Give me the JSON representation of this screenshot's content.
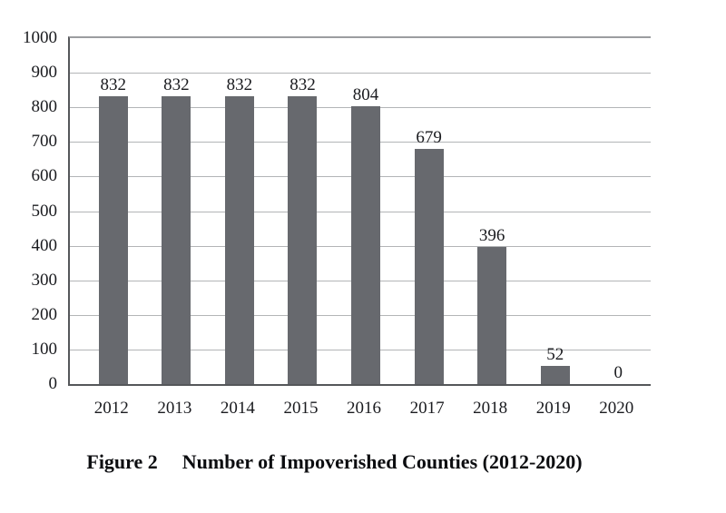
{
  "caption": {
    "label": "Figure 2",
    "title": "Number of Impoverished Counties (2012-2020)"
  },
  "chart_data": {
    "type": "bar",
    "title": "Figure 2  Number of Impoverished Counties (2012-2020)",
    "categories": [
      "2012",
      "2013",
      "2014",
      "2015",
      "2016",
      "2017",
      "2018",
      "2019",
      "2020"
    ],
    "values": [
      832,
      832,
      832,
      832,
      804,
      679,
      396,
      52,
      0
    ],
    "data_labels": [
      "832",
      "832",
      "832",
      "832",
      "804",
      "679",
      "396",
      "52",
      "0"
    ],
    "xlabel": "",
    "ylabel": "",
    "ylim": [
      0,
      1000
    ],
    "yticks": [
      0,
      100,
      200,
      300,
      400,
      500,
      600,
      700,
      800,
      900,
      1000
    ],
    "grid": true,
    "legend": "none",
    "bar_color": "#67696e"
  },
  "colors": {
    "bar": "#67696e",
    "gridline": "#b3b5b7",
    "axis": "#55575a",
    "plot_top_border": "#9b9da0",
    "text": "#1a1b1f",
    "caption": "#0c0d10",
    "background": "#ffffff"
  }
}
